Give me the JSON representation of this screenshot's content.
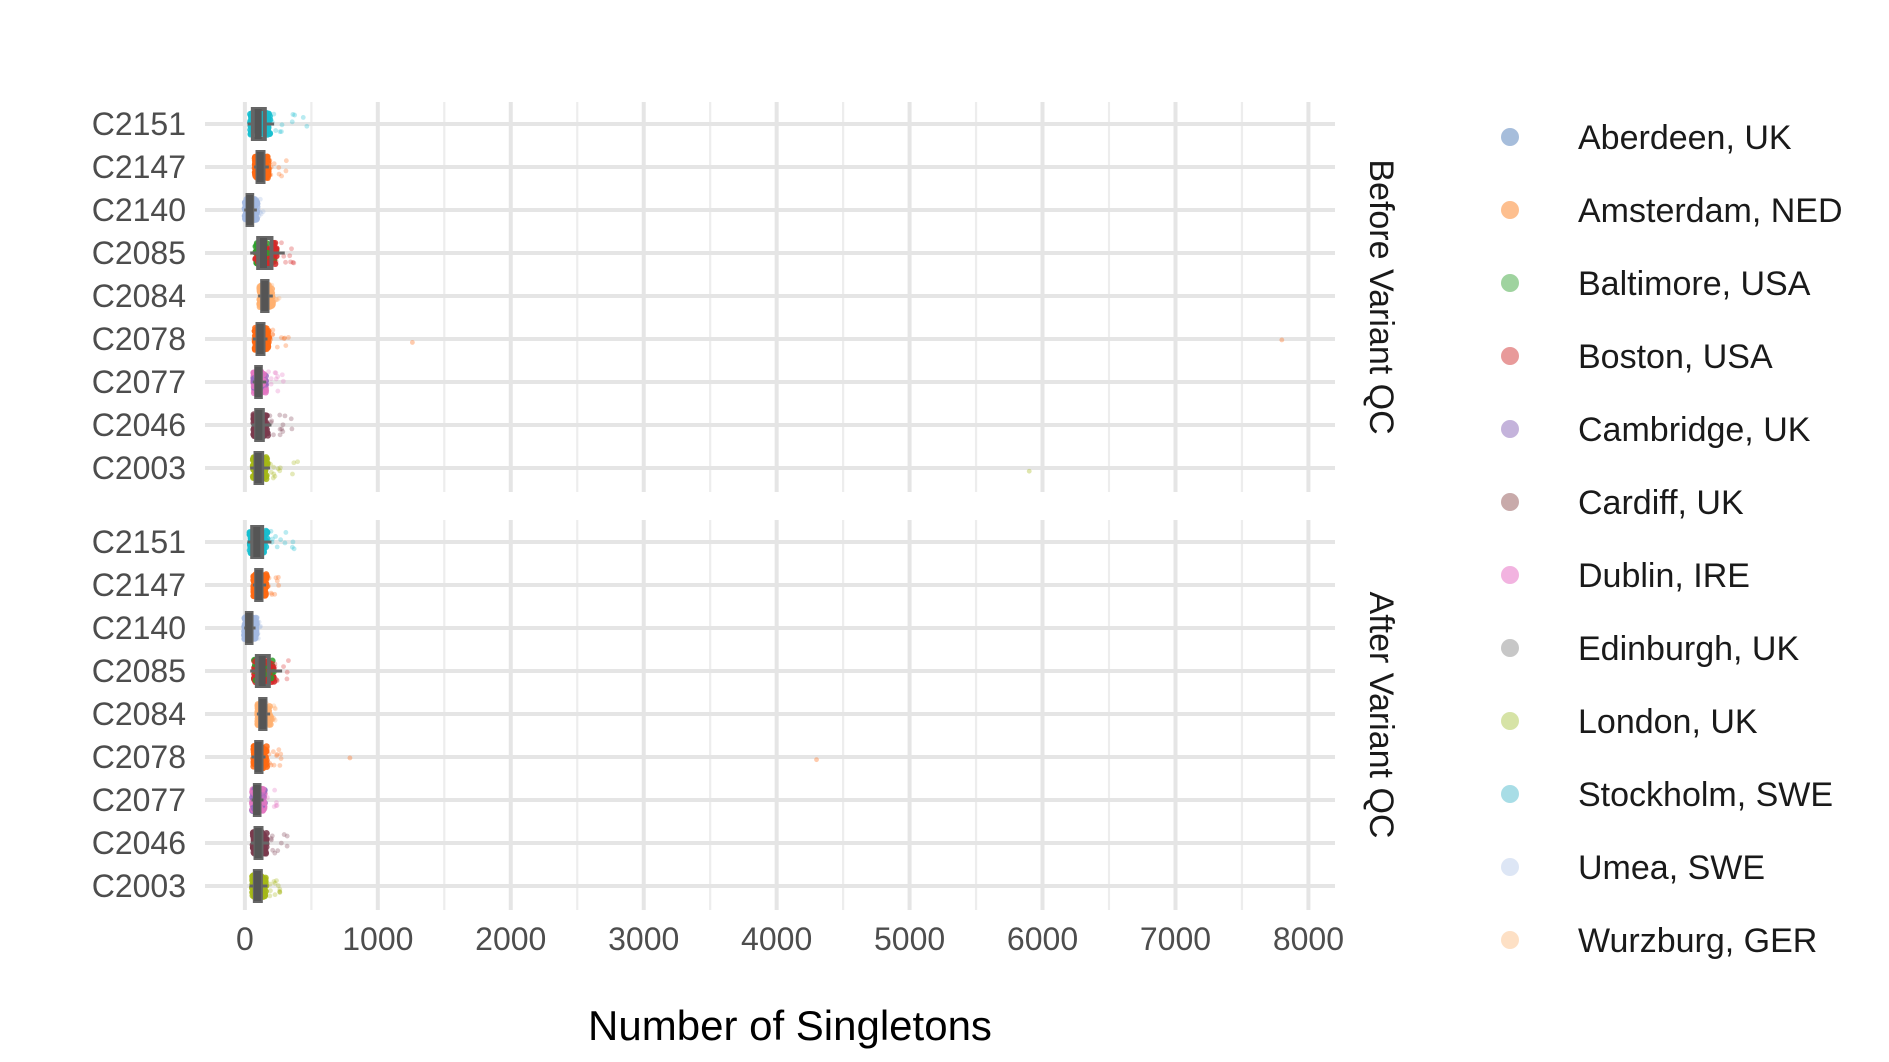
{
  "chart_data": {
    "type": "scatter",
    "subtype": "jittered strip plot with boxplots, faceted",
    "title": "",
    "xlabel": "Number of Singletons",
    "ylabel": "",
    "xlim": [
      -300,
      8200
    ],
    "x_ticks": [
      0,
      1000,
      2000,
      3000,
      4000,
      5000,
      6000,
      7000,
      8000
    ],
    "x_tick_labels": [
      "0",
      "1000",
      "2000",
      "3000",
      "4000",
      "5000",
      "6000",
      "7000",
      "8000"
    ],
    "categories": [
      "C2151",
      "C2147",
      "C2140",
      "C2085",
      "C2084",
      "C2078",
      "C2077",
      "C2046",
      "C2003"
    ],
    "grid": true,
    "legend_position": "right",
    "legend": [
      {
        "name": "Aberdeen, UK",
        "color": "#a6bddb"
      },
      {
        "name": "Amsterdam, NED",
        "color": "#fdbf8f"
      },
      {
        "name": "Baltimore, USA",
        "color": "#9fd39f"
      },
      {
        "name": "Boston, USA",
        "color": "#e89a9a"
      },
      {
        "name": "Cambridge, UK",
        "color": "#c4b3db"
      },
      {
        "name": "Cardiff, UK",
        "color": "#c8aaaa"
      },
      {
        "name": "Dublin, IRE",
        "color": "#f2b3e0"
      },
      {
        "name": "Edinburgh, UK",
        "color": "#c7c7c7"
      },
      {
        "name": "London, UK",
        "color": "#d6e3a6"
      },
      {
        "name": "Stockholm, SWE",
        "color": "#a8dde6"
      },
      {
        "name": "Umea, SWE",
        "color": "#dde6f5"
      },
      {
        "name": "Wurzburg, GER",
        "color": "#fde0c5"
      }
    ],
    "panels": [
      {
        "label": "Before Variant QC",
        "groups": [
          {
            "category": "C2151",
            "color": "#17becf",
            "box": [
              20,
              60,
              100,
              150,
              220
            ],
            "range": [
              20,
              480
            ],
            "outliers": []
          },
          {
            "category": "C2147",
            "color": "#ff6a13",
            "box": [
              70,
              95,
              115,
              140,
              180
            ],
            "range": [
              60,
              320
            ],
            "outliers": []
          },
          {
            "category": "C2140",
            "color": "#a3b8e0",
            "box": [
              -5,
              20,
              35,
              55,
              90
            ],
            "range": [
              -5,
              140
            ],
            "outliers": []
          },
          {
            "category": "C2085",
            "color": "#d62728",
            "second_color": "#2ca02c",
            "box": [
              40,
              100,
              140,
              200,
              300
            ],
            "range": [
              30,
              380
            ],
            "outliers": []
          },
          {
            "category": "C2084",
            "color": "#ffb070",
            "box": [
              100,
              130,
              150,
              170,
              210
            ],
            "range": [
              90,
              260
            ],
            "outliers": []
          },
          {
            "category": "C2078",
            "color": "#ff6a13",
            "box": [
              60,
              95,
              115,
              140,
              170
            ],
            "range": [
              50,
              340
            ],
            "outliers": [
              1260,
              7800
            ]
          },
          {
            "category": "C2077",
            "color": "#e377c2",
            "second_color": "#9467bd",
            "box": [
              60,
              85,
              100,
              120,
              160
            ],
            "range": [
              50,
              300
            ],
            "outliers": []
          },
          {
            "category": "C2046",
            "color": "#7a3b4e",
            "box": [
              50,
              85,
              105,
              135,
              200
            ],
            "range": [
              40,
              360
            ],
            "outliers": []
          },
          {
            "category": "C2003",
            "color": "#a4b716",
            "box": [
              40,
              80,
              100,
              130,
              190
            ],
            "range": [
              30,
              420
            ],
            "outliers": [
              5900
            ]
          }
        ]
      },
      {
        "label": "After Variant QC",
        "groups": [
          {
            "category": "C2151",
            "color": "#17becf",
            "box": [
              20,
              55,
              90,
              130,
              200
            ],
            "range": [
              20,
              400
            ],
            "outliers": []
          },
          {
            "category": "C2147",
            "color": "#ff6a13",
            "box": [
              60,
              85,
              105,
              125,
              160
            ],
            "range": [
              50,
              280
            ],
            "outliers": []
          },
          {
            "category": "C2140",
            "color": "#a3b8e0",
            "box": [
              -5,
              15,
              30,
              50,
              80
            ],
            "range": [
              -5,
              120
            ],
            "outliers": []
          },
          {
            "category": "C2085",
            "color": "#d62728",
            "second_color": "#2ca02c",
            "box": [
              40,
              90,
              130,
              180,
              280
            ],
            "range": [
              30,
              330
            ],
            "outliers": []
          },
          {
            "category": "C2084",
            "color": "#ffb070",
            "box": [
              90,
              115,
              135,
              155,
              190
            ],
            "range": [
              80,
              230
            ],
            "outliers": []
          },
          {
            "category": "C2078",
            "color": "#ff6a13",
            "box": [
              50,
              85,
              100,
              125,
              155
            ],
            "range": [
              40,
              300
            ],
            "outliers": [
              790,
              4300
            ]
          },
          {
            "category": "C2077",
            "color": "#e377c2",
            "second_color": "#9467bd",
            "box": [
              50,
              75,
              90,
              110,
              140
            ],
            "range": [
              40,
              250
            ],
            "outliers": []
          },
          {
            "category": "C2046",
            "color": "#7a3b4e",
            "box": [
              45,
              80,
              100,
              125,
              180
            ],
            "range": [
              40,
              320
            ],
            "outliers": []
          },
          {
            "category": "C2003",
            "color": "#a4b716",
            "box": [
              35,
              75,
              95,
              120,
              170
            ],
            "range": [
              30,
              300
            ],
            "outliers": []
          }
        ]
      }
    ]
  }
}
